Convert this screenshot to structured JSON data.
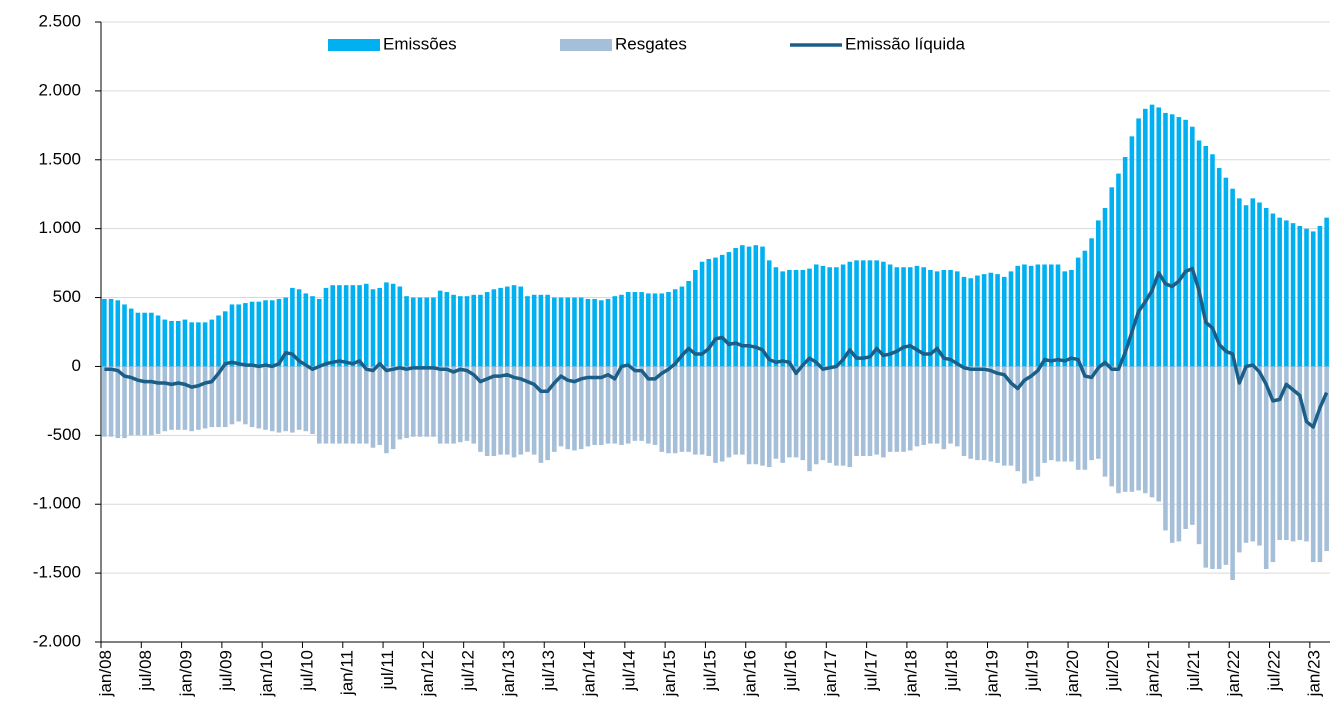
{
  "chart_data": {
    "type": "bar-line",
    "categories": [
      "jan/08",
      null,
      null,
      null,
      null,
      null,
      "jul/08",
      null,
      null,
      null,
      null,
      null,
      "jan/09",
      null,
      null,
      null,
      null,
      null,
      "jul/09",
      null,
      null,
      null,
      null,
      null,
      "jan/10",
      null,
      null,
      null,
      null,
      null,
      "jul/10",
      null,
      null,
      null,
      null,
      null,
      "jan/11",
      null,
      null,
      null,
      null,
      null,
      "jul/11",
      null,
      null,
      null,
      null,
      null,
      "jan/12",
      null,
      null,
      null,
      null,
      null,
      "jul/12",
      null,
      null,
      null,
      null,
      null,
      "jan/13",
      null,
      null,
      null,
      null,
      null,
      "jul/13",
      null,
      null,
      null,
      null,
      null,
      "jan/14",
      null,
      null,
      null,
      null,
      null,
      "jul/14",
      null,
      null,
      null,
      null,
      null,
      "jan/15",
      null,
      null,
      null,
      null,
      null,
      "jul/15",
      null,
      null,
      null,
      null,
      null,
      "jan/16",
      null,
      null,
      null,
      null,
      null,
      "jul/16",
      null,
      null,
      null,
      null,
      null,
      "jan/17",
      null,
      null,
      null,
      null,
      null,
      "jul/17",
      null,
      null,
      null,
      null,
      null,
      "jan/18",
      null,
      null,
      null,
      null,
      null,
      "jul/18",
      null,
      null,
      null,
      null,
      null,
      "jan/19",
      null,
      null,
      null,
      null,
      null,
      "jul/19",
      null,
      null,
      null,
      null,
      null,
      "jan/20",
      null,
      null,
      null,
      null,
      null,
      "jul/20",
      null,
      null,
      null,
      null,
      null,
      "jan/21",
      null,
      null,
      null,
      null,
      null,
      "jul/21",
      null,
      null,
      null,
      null,
      null,
      "jan/22",
      null,
      null,
      null,
      null,
      null,
      "jul/22",
      null,
      null,
      null,
      null,
      null,
      "jan/23",
      null,
      null
    ],
    "series": [
      {
        "name": "Emissões",
        "color": "#00b0f0",
        "kind": "bar",
        "values": [
          490,
          490,
          480,
          450,
          420,
          390,
          390,
          390,
          370,
          340,
          330,
          330,
          340,
          320,
          320,
          320,
          340,
          370,
          400,
          450,
          450,
          460,
          470,
          470,
          480,
          480,
          490,
          500,
          570,
          560,
          530,
          510,
          490,
          570,
          590,
          590,
          590,
          590,
          590,
          600,
          560,
          570,
          610,
          600,
          580,
          510,
          500,
          500,
          500,
          500,
          550,
          540,
          520,
          510,
          510,
          520,
          520,
          540,
          560,
          570,
          580,
          590,
          580,
          510,
          520,
          520,
          520,
          500,
          500,
          500,
          500,
          500,
          490,
          490,
          480,
          490,
          510,
          520,
          540,
          540,
          540,
          530,
          530,
          530,
          540,
          560,
          580,
          620,
          700,
          760,
          780,
          790,
          810,
          830,
          860,
          880,
          870,
          880,
          870,
          770,
          720,
          690,
          700,
          700,
          700,
          710,
          740,
          730,
          720,
          720,
          740,
          760,
          770,
          770,
          770,
          770,
          760,
          740,
          720,
          720,
          720,
          730,
          720,
          700,
          690,
          700,
          700,
          690,
          650,
          640,
          660,
          670,
          680,
          670,
          650,
          690,
          730,
          740,
          730,
          740,
          740,
          740,
          740,
          690,
          700,
          790,
          840,
          930,
          1060,
          1150,
          1300,
          1400,
          1520,
          1670,
          1800,
          1870,
          1900,
          1880,
          1840,
          1830,
          1810,
          1790,
          1740,
          1640,
          1600,
          1540,
          1440,
          1370,
          1290,
          1220,
          1170,
          1220,
          1190,
          1150,
          1110,
          1080,
          1060,
          1040,
          1020,
          1000,
          980,
          1020,
          1080
        ]
      },
      {
        "name": "Resgates",
        "color": "#a6bfd8",
        "kind": "bar",
        "values": [
          -510,
          -510,
          -520,
          -520,
          -500,
          -500,
          -500,
          -500,
          -490,
          -470,
          -460,
          -460,
          -460,
          -470,
          -460,
          -450,
          -440,
          -440,
          -440,
          -420,
          -400,
          -420,
          -440,
          -450,
          -460,
          -470,
          -480,
          -470,
          -480,
          -460,
          -470,
          -490,
          -560,
          -560,
          -560,
          -560,
          -560,
          -560,
          -560,
          -560,
          -590,
          -570,
          -630,
          -600,
          -530,
          -520,
          -510,
          -510,
          -510,
          -510,
          -560,
          -560,
          -560,
          -550,
          -540,
          -560,
          -620,
          -650,
          -650,
          -640,
          -640,
          -660,
          -640,
          -620,
          -640,
          -700,
          -680,
          -620,
          -580,
          -600,
          -610,
          -600,
          -580,
          -570,
          -570,
          -560,
          -560,
          -570,
          -560,
          -540,
          -540,
          -560,
          -570,
          -620,
          -630,
          -630,
          -620,
          -620,
          -640,
          -640,
          -650,
          -700,
          -690,
          -660,
          -640,
          -640,
          -710,
          -710,
          -720,
          -730,
          -670,
          -700,
          -660,
          -660,
          -680,
          -760,
          -710,
          -680,
          -700,
          -720,
          -720,
          -730,
          -650,
          -650,
          -650,
          -640,
          -660,
          -620,
          -620,
          -620,
          -610,
          -580,
          -570,
          -560,
          -560,
          -600,
          -560,
          -580,
          -650,
          -670,
          -680,
          -680,
          -690,
          -700,
          -720,
          -720,
          -760,
          -850,
          -830,
          -800,
          -700,
          -680,
          -690,
          -690,
          -690,
          -750,
          -750,
          -680,
          -670,
          -800,
          -870,
          -920,
          -910,
          -910,
          -900,
          -920,
          -950,
          -980,
          -1190,
          -1280,
          -1270,
          -1180,
          -1150,
          -1290,
          -1460,
          -1470,
          -1470,
          -1440,
          -1550,
          -1350,
          -1280,
          -1270,
          -1300,
          -1470,
          -1420,
          -1260,
          -1260,
          -1270,
          -1260,
          -1270,
          -1420,
          -1420,
          -1340
        ]
      },
      {
        "name": "Emissão líquida",
        "color": "#1b5e87",
        "kind": "line",
        "values": [
          -20,
          -20,
          -30,
          -70,
          -80,
          -100,
          -110,
          -110,
          -120,
          -120,
          -130,
          -120,
          -130,
          -150,
          -140,
          -120,
          -110,
          -50,
          20,
          30,
          20,
          10,
          10,
          0,
          10,
          0,
          20,
          100,
          90,
          40,
          10,
          -20,
          0,
          20,
          30,
          40,
          30,
          20,
          40,
          -20,
          -30,
          20,
          -30,
          -20,
          -10,
          -20,
          -10,
          -10,
          -10,
          -10,
          -20,
          -20,
          -40,
          -20,
          -30,
          -60,
          -110,
          -90,
          -70,
          -70,
          -60,
          -80,
          -90,
          -110,
          -130,
          -180,
          -180,
          -120,
          -70,
          -100,
          -110,
          -90,
          -80,
          -80,
          -80,
          -60,
          -90,
          0,
          10,
          -30,
          -30,
          -90,
          -90,
          -50,
          -20,
          20,
          80,
          130,
          90,
          90,
          130,
          200,
          210,
          160,
          170,
          150,
          150,
          140,
          120,
          50,
          30,
          40,
          30,
          -50,
          10,
          60,
          30,
          -20,
          -10,
          0,
          50,
          120,
          60,
          60,
          70,
          130,
          80,
          90,
          110,
          140,
          150,
          120,
          90,
          90,
          130,
          60,
          50,
          20,
          -10,
          -20,
          -20,
          -20,
          -30,
          -50,
          -60,
          -120,
          -160,
          -100,
          -70,
          -30,
          50,
          40,
          50,
          40,
          60,
          50,
          -70,
          -80,
          -10,
          30,
          -20,
          -20,
          100,
          250,
          400,
          470,
          550,
          680,
          600,
          580,
          620,
          690,
          710,
          550,
          320,
          280,
          160,
          110,
          90,
          -120,
          0,
          10,
          -40,
          -130,
          -250,
          -240,
          -130,
          -170,
          -210,
          -400,
          -440,
          -300,
          -190
        ]
      }
    ],
    "ylim": [
      -2000,
      2500
    ],
    "yticks": [
      {
        "value": -2000,
        "label": "-2.000"
      },
      {
        "value": -1500,
        "label": "-1.500"
      },
      {
        "value": -1000,
        "label": "-1.000"
      },
      -500,
      0,
      500,
      {
        "value": 1000,
        "label": "1.000"
      },
      {
        "value": 1500,
        "label": "1.500"
      },
      {
        "value": 2000,
        "label": "2.000"
      },
      {
        "value": 2500,
        "label": "2.500"
      }
    ],
    "grid": true,
    "legend": "top"
  }
}
